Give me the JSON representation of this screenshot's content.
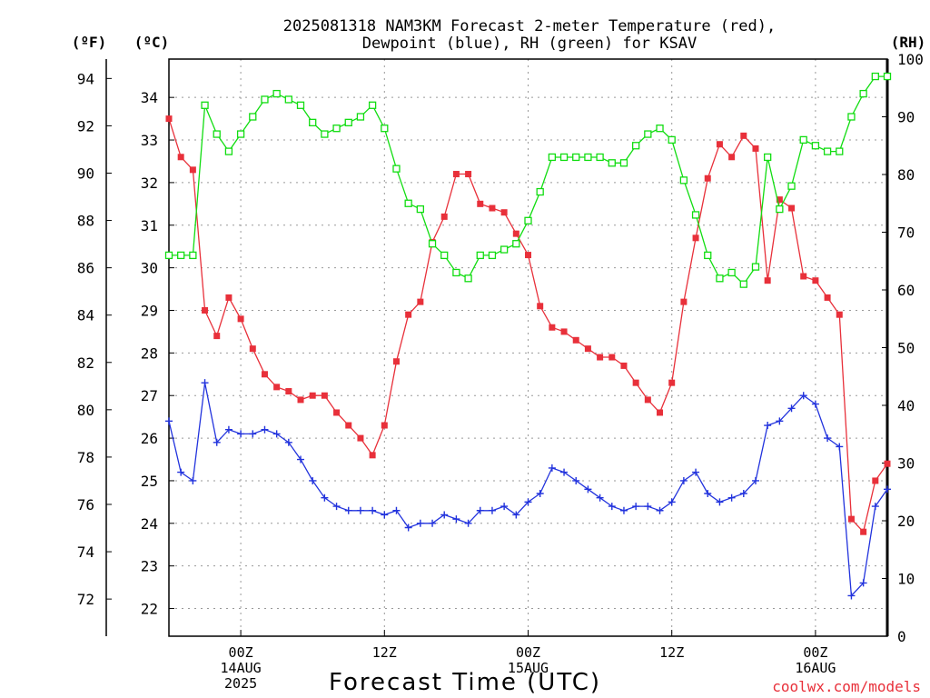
{
  "chart_data": {
    "type": "line",
    "title": "2025081318 NAM3KM Forecast 2-meter Temperature (red),",
    "subtitle": "Dewpoint (blue), RH (green) for KSAV",
    "xlabel": "Forecast Time (UTC)",
    "credit": "coolwx.com/models",
    "units": {
      "fahrenheit": "(ºF)",
      "celsius": "(ºC)",
      "rh": "(RH)"
    },
    "x_hours_range": [
      18,
      78
    ],
    "x_ticks": [
      {
        "hour": 24,
        "lines": [
          "00Z",
          "14AUG",
          "2025"
        ]
      },
      {
        "hour": 36,
        "lines": [
          "12Z"
        ]
      },
      {
        "hour": 48,
        "lines": [
          "00Z",
          "15AUG"
        ]
      },
      {
        "hour": 60,
        "lines": [
          "12Z"
        ]
      },
      {
        "hour": 72,
        "lines": [
          "00Z",
          "16AUG"
        ]
      }
    ],
    "celsius_axis": {
      "range": [
        21.35,
        34.9
      ],
      "ticks": [
        "22",
        "23",
        "24",
        "25",
        "26",
        "27",
        "28",
        "29",
        "30",
        "31",
        "32",
        "33",
        "34"
      ]
    },
    "fahrenheit_axis": {
      "range": [
        70.43,
        94.82
      ],
      "ticks": [
        "72",
        "74",
        "76",
        "78",
        "80",
        "82",
        "84",
        "86",
        "88",
        "90",
        "92",
        "94"
      ]
    },
    "rh_axis": {
      "range": [
        0,
        100
      ],
      "ticks": [
        "0",
        "10",
        "20",
        "30",
        "40",
        "50",
        "60",
        "70",
        "80",
        "90",
        "100"
      ]
    },
    "series": [
      {
        "name": "Temperature",
        "axis": "celsius",
        "color": "#e8303a",
        "marker": "filled-square",
        "values": [
          33.5,
          32.6,
          32.3,
          29.0,
          28.4,
          29.3,
          28.8,
          28.1,
          27.5,
          27.2,
          27.1,
          26.9,
          27.0,
          27.0,
          26.6,
          26.3,
          26.0,
          25.6,
          26.3,
          27.8,
          28.9,
          29.2,
          30.6,
          31.2,
          32.2,
          32.2,
          31.5,
          31.4,
          31.3,
          30.8,
          30.3,
          29.1,
          28.6,
          28.5,
          28.3,
          28.1,
          27.9,
          27.9,
          27.7,
          27.3,
          26.9,
          26.6,
          27.3,
          29.2,
          30.7,
          32.1,
          32.9,
          32.6,
          33.1,
          32.8,
          29.7,
          31.6,
          31.4,
          29.8,
          29.7,
          29.3,
          28.9,
          24.1,
          23.8,
          25.0,
          25.4
        ]
      },
      {
        "name": "Dewpoint",
        "axis": "celsius",
        "color": "#2233dd",
        "marker": "plus",
        "values": [
          26.4,
          25.2,
          25.0,
          27.3,
          25.9,
          26.2,
          26.1,
          26.1,
          26.2,
          26.1,
          25.9,
          25.5,
          25.0,
          24.6,
          24.4,
          24.3,
          24.3,
          24.3,
          24.2,
          24.3,
          23.9,
          24.0,
          24.0,
          24.2,
          24.1,
          24.0,
          24.3,
          24.3,
          24.4,
          24.2,
          24.5,
          24.7,
          25.3,
          25.2,
          25.0,
          24.8,
          24.6,
          24.4,
          24.3,
          24.4,
          24.4,
          24.3,
          24.5,
          25.0,
          25.2,
          24.7,
          24.5,
          24.6,
          24.7,
          25.0,
          26.3,
          26.4,
          26.7,
          27.0,
          26.8,
          26.0,
          25.8,
          22.3,
          22.6,
          24.4,
          24.8
        ]
      },
      {
        "name": "RH",
        "axis": "rh",
        "color": "#11dd11",
        "marker": "open-square",
        "values": [
          66,
          66,
          66,
          92,
          87,
          84,
          87,
          90,
          93,
          94,
          93,
          92,
          89,
          87,
          88,
          89,
          90,
          92,
          88,
          81,
          75,
          74,
          68,
          66,
          63,
          62,
          66,
          66,
          67,
          68,
          72,
          77,
          83,
          83,
          83,
          83,
          83,
          82,
          82,
          85,
          87,
          88,
          86,
          79,
          73,
          66,
          62,
          63,
          61,
          64,
          83,
          74,
          78,
          86,
          85,
          84,
          84,
          90,
          94,
          97,
          97
        ]
      }
    ]
  }
}
